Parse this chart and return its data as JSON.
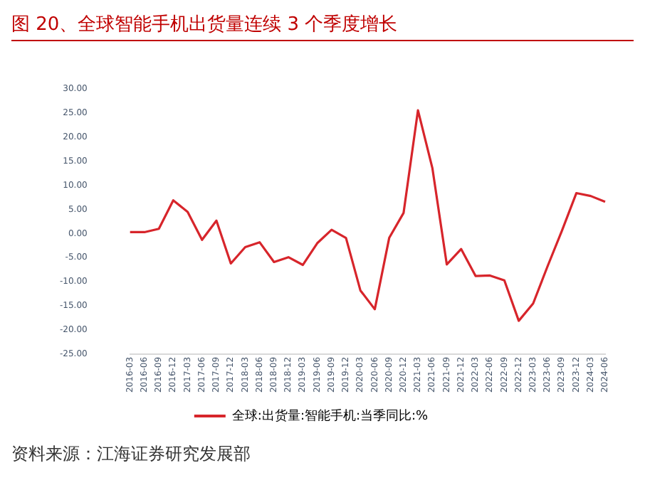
{
  "chart_data": {
    "type": "line",
    "title": "图 20、全球智能手机出货量连续 3 个季度增长",
    "categories": [
      "2016-03",
      "2016-06",
      "2016-09",
      "2016-12",
      "2017-03",
      "2017-06",
      "2017-09",
      "2017-12",
      "2018-03",
      "2018-06",
      "2018-09",
      "2018-12",
      "2019-03",
      "2019-06",
      "2019-09",
      "2019-12",
      "2020-03",
      "2020-06",
      "2020-09",
      "2020-12",
      "2021-03",
      "2021-06",
      "2021-09",
      "2021-12",
      "2022-03",
      "2022-06",
      "2022-09",
      "2022-12",
      "2023-03",
      "2023-06",
      "2023-09",
      "2023-12",
      "2024-03",
      "2024-06"
    ],
    "series": [
      {
        "name": "全球:出货量:智能手机:当季同比:%",
        "color": "#d7252b",
        "values": [
          0.3,
          0.3,
          1.0,
          6.9,
          4.5,
          -1.3,
          2.7,
          -6.2,
          -2.8,
          -1.8,
          -5.9,
          -4.9,
          -6.5,
          -2.0,
          0.8,
          -0.9,
          -11.8,
          -15.7,
          -0.9,
          4.3,
          25.6,
          13.6,
          -6.4,
          -3.2,
          -8.8,
          -8.7,
          -9.7,
          -18.1,
          -14.5,
          -6.8,
          0.6,
          8.4,
          7.8,
          6.6
        ]
      }
    ],
    "ylim": [
      -25,
      30
    ],
    "yticks": [
      {
        "value": -25,
        "label": "-25.00"
      },
      {
        "value": -20,
        "label": "-20.00"
      },
      {
        "value": -15,
        "label": "-15.00"
      },
      {
        "value": -10,
        "label": "-10.00"
      },
      {
        "value": -5,
        "label": "-5.00"
      },
      {
        "value": 0,
        "label": "0.00"
      },
      {
        "value": 5,
        "label": "5.00"
      },
      {
        "value": 10,
        "label": "10.00"
      },
      {
        "value": 15,
        "label": "15.00"
      },
      {
        "value": 20,
        "label": "20.00"
      },
      {
        "value": 25,
        "label": "25.00"
      },
      {
        "value": 30,
        "label": "30.00"
      }
    ],
    "grid": false,
    "legend": "bottom",
    "marker": "none",
    "line_style": "solid",
    "annotations": [
      "资料来源：江海证券研究发展部"
    ]
  }
}
